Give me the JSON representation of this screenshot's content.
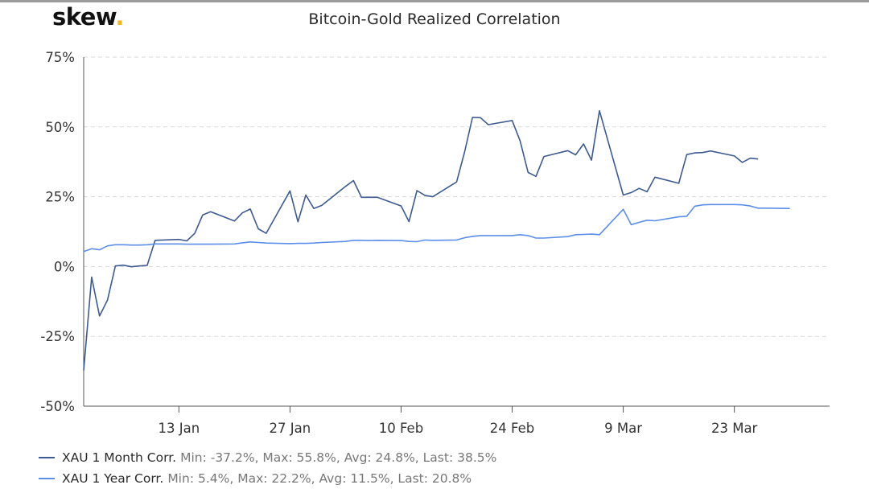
{
  "brand": {
    "name": "skew",
    "dot": "."
  },
  "colors": {
    "series1": "#3d5a91",
    "series2": "#5b8ee8",
    "grid": "#d8d8d8",
    "axis": "#555555",
    "text": "#333333"
  },
  "chart_data": {
    "type": "line",
    "title": "Bitcoin-Gold Realized Correlation",
    "xlabel": "",
    "ylabel": "",
    "ylim": [
      -50,
      75
    ],
    "y_ticks": [
      "75%",
      "50%",
      "25%",
      "0%",
      "-25%",
      "-50%"
    ],
    "y_tick_values": [
      75,
      50,
      25,
      0,
      -25,
      -50
    ],
    "x_ticks": [
      "13 Jan",
      "27 Jan",
      "10 Feb",
      "24 Feb",
      "9 Mar",
      "23 Mar"
    ],
    "x_tick_values": [
      "2020-01-13",
      "2020-01-27",
      "2020-02-10",
      "2020-02-24",
      "2020-03-09",
      "2020-03-23"
    ],
    "x_range": [
      "2020-01-01",
      "2020-04-04"
    ],
    "grid": "horizontal dashed",
    "legend_position": "bottom-left",
    "dates": [
      "2020-01-01",
      "2020-01-02",
      "2020-01-03",
      "2020-01-04",
      "2020-01-05",
      "2020-01-06",
      "2020-01-07",
      "2020-01-08",
      "2020-01-09",
      "2020-01-10",
      "2020-01-13",
      "2020-01-14",
      "2020-01-15",
      "2020-01-16",
      "2020-01-17",
      "2020-01-20",
      "2020-01-21",
      "2020-01-22",
      "2020-01-23",
      "2020-01-24",
      "2020-01-27",
      "2020-01-28",
      "2020-01-29",
      "2020-01-30",
      "2020-01-31",
      "2020-02-03",
      "2020-02-04",
      "2020-02-05",
      "2020-02-06",
      "2020-02-07",
      "2020-02-10",
      "2020-02-11",
      "2020-02-12",
      "2020-02-13",
      "2020-02-14",
      "2020-02-17",
      "2020-02-18",
      "2020-02-19",
      "2020-02-20",
      "2020-02-21",
      "2020-02-24",
      "2020-02-25",
      "2020-02-26",
      "2020-02-27",
      "2020-02-28",
      "2020-03-02",
      "2020-03-03",
      "2020-03-04",
      "2020-03-05",
      "2020-03-06",
      "2020-03-09",
      "2020-03-10",
      "2020-03-11",
      "2020-03-12",
      "2020-03-13",
      "2020-03-16",
      "2020-03-17",
      "2020-03-18",
      "2020-03-19",
      "2020-03-20",
      "2020-03-23",
      "2020-03-24",
      "2020-03-25",
      "2020-03-26",
      "2020-03-27",
      "2020-03-30",
      "2020-03-31",
      "2020-04-01",
      "2020-04-02",
      "2020-04-03"
    ],
    "series": [
      {
        "name": "XAU 1 Month Corr.",
        "stats": "Min: -37.2%, Max: 55.8%, Avg: 24.8%, Last: 38.5%",
        "values": [
          -37.2,
          -3.8,
          -17.7,
          -12.0,
          0.2,
          0.5,
          -0.1,
          0.2,
          0.4,
          9.4,
          9.7,
          9.2,
          11.9,
          18.5,
          19.6,
          16.3,
          19.2,
          20.6,
          13.5,
          11.9,
          27.1,
          16.0,
          25.6,
          20.8,
          21.9,
          28.7,
          30.8,
          24.8,
          24.8,
          24.8,
          21.7,
          16.1,
          27.2,
          25.5,
          25.0,
          30.3,
          41.0,
          53.4,
          53.3,
          50.8,
          52.3,
          45.0,
          33.7,
          32.3,
          39.4,
          41.5,
          40.0,
          43.9,
          38.1,
          55.8,
          25.6,
          26.5,
          28.0,
          26.8,
          32.0,
          29.8,
          40.1,
          40.7,
          40.8,
          41.4,
          39.6,
          37.3,
          38.8,
          38.5,
          null,
          null,
          null,
          null,
          null,
          null
        ]
      },
      {
        "name": "XAU 1 Year Corr.",
        "stats": "Min: 5.4%, Max: 22.2%, Avg: 11.5%, Last: 20.8%",
        "values": [
          5.4,
          6.4,
          6.0,
          7.4,
          7.8,
          7.8,
          7.7,
          7.7,
          7.8,
          8.1,
          8.1,
          8.0,
          8.0,
          8.0,
          8.0,
          8.1,
          8.5,
          8.8,
          8.6,
          8.4,
          8.2,
          8.3,
          8.3,
          8.4,
          8.6,
          9.0,
          9.4,
          9.4,
          9.3,
          9.4,
          9.3,
          9.0,
          8.9,
          9.5,
          9.4,
          9.5,
          10.3,
          10.8,
          11.1,
          11.1,
          11.1,
          11.4,
          11.1,
          10.2,
          10.2,
          10.7,
          11.4,
          11.5,
          11.6,
          11.4,
          20.5,
          15.0,
          15.8,
          16.6,
          16.4,
          17.8,
          18.0,
          21.6,
          22.1,
          22.2,
          22.2,
          22.1,
          21.7,
          20.9,
          20.9,
          20.8,
          null,
          null,
          null,
          null
        ]
      }
    ]
  }
}
